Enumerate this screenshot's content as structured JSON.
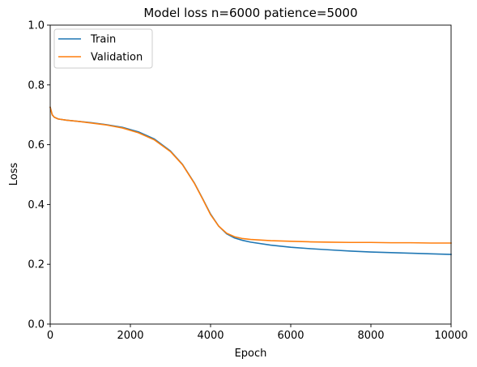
{
  "chart_data": {
    "type": "line",
    "title": "Model loss n=6000 patience=5000",
    "xlabel": "Epoch",
    "ylabel": "Loss",
    "xlim": [
      0,
      10000
    ],
    "ylim": [
      0,
      1.0
    ],
    "xticks": [
      0,
      2000,
      4000,
      6000,
      8000,
      10000
    ],
    "xtick_labels": [
      "0",
      "2000",
      "4000",
      "6000",
      "8000",
      "10000"
    ],
    "yticks": [
      0.0,
      0.2,
      0.4,
      0.6,
      0.8,
      1.0
    ],
    "ytick_labels": [
      "0.0",
      "0.2",
      "0.4",
      "0.6",
      "0.8",
      "1.0"
    ],
    "grid": false,
    "legend_position": "top-left",
    "x": [
      0,
      50,
      100,
      200,
      400,
      700,
      1000,
      1400,
      1800,
      2200,
      2600,
      3000,
      3300,
      3600,
      3800,
      4000,
      4200,
      4400,
      4600,
      4800,
      5000,
      5500,
      6000,
      6500,
      7000,
      7500,
      8000,
      8500,
      9000,
      9500,
      10000
    ],
    "series": [
      {
        "name": "Train",
        "color": "#1f77b4",
        "values": [
          0.725,
          0.7,
          0.692,
          0.686,
          0.682,
          0.678,
          0.674,
          0.667,
          0.658,
          0.643,
          0.619,
          0.579,
          0.534,
          0.471,
          0.42,
          0.368,
          0.328,
          0.302,
          0.288,
          0.28,
          0.274,
          0.264,
          0.257,
          0.252,
          0.248,
          0.244,
          0.241,
          0.239,
          0.237,
          0.235,
          0.233
        ]
      },
      {
        "name": "Validation",
        "color": "#ff7f0e",
        "values": [
          0.725,
          0.7,
          0.692,
          0.686,
          0.682,
          0.678,
          0.673,
          0.666,
          0.656,
          0.64,
          0.616,
          0.577,
          0.533,
          0.47,
          0.419,
          0.366,
          0.328,
          0.304,
          0.292,
          0.286,
          0.283,
          0.279,
          0.277,
          0.275,
          0.274,
          0.273,
          0.273,
          0.272,
          0.272,
          0.271,
          0.271
        ]
      }
    ]
  }
}
